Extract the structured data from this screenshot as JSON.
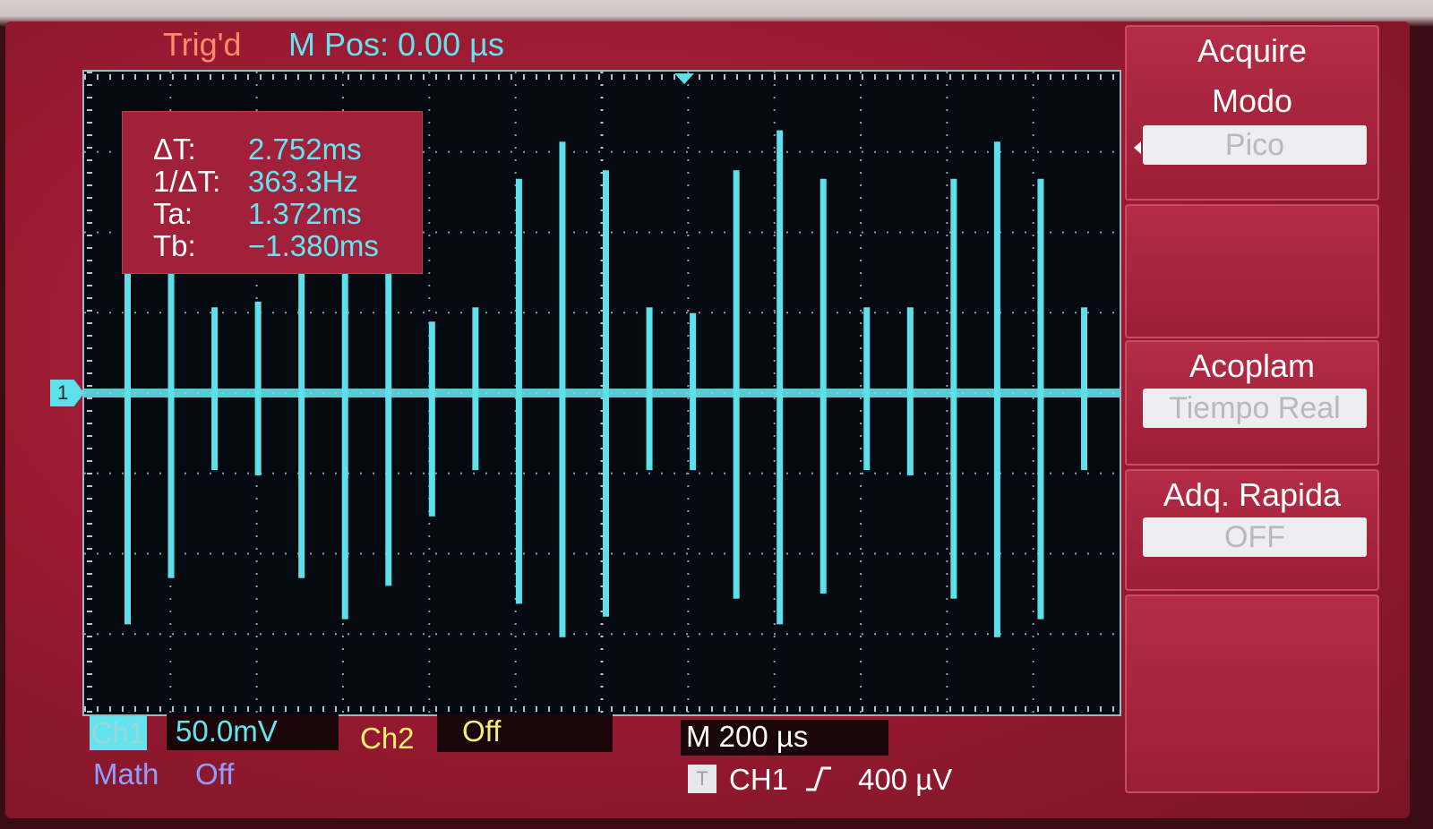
{
  "status": {
    "trigger_state": "Trig'd",
    "main_position": "M Pos: 0.00 µs"
  },
  "measurements": [
    {
      "label": "ΔT:",
      "value": "2.752ms"
    },
    {
      "label": "1/ΔT:",
      "value": "363.3Hz"
    },
    {
      "label": "Ta:",
      "value": "1.372ms"
    },
    {
      "label": "Tb:",
      "value": "−1.380ms"
    }
  ],
  "channel_marker": "1",
  "menu": {
    "title": "Acquire",
    "modo_label": "Modo",
    "modo_value": "Pico",
    "acoplam_label": "Acoplam",
    "acoplam_value": "Tiempo Real",
    "adq_label": "Adq. Rapida",
    "adq_value": "OFF"
  },
  "bottom": {
    "ch1_label": "Ch1",
    "ch1_scale": "50.0mV",
    "ch2_label": "Ch2",
    "ch2_value": "Off",
    "math_label": "Math",
    "math_value": "Off",
    "timebase": "M 200 µs",
    "trigger_icon": "T",
    "trigger_source": "CH1",
    "trigger_edge_icon": "rising-edge-icon",
    "trigger_level": "400 µV"
  },
  "colors": {
    "trace": "#5ee0ea",
    "screen_bg": "#050a10",
    "panel": "#a1213a",
    "ch2": "#f5f070",
    "math": "#8ea0ff"
  },
  "waveform": {
    "description": "impulse train",
    "spikes": [
      {
        "up": 0.85,
        "down": 0.9
      },
      {
        "up": 0.7,
        "down": 0.72
      },
      {
        "up": 0.3,
        "down": 0.3
      },
      {
        "up": 0.32,
        "down": 0.32
      },
      {
        "up": 0.75,
        "down": 0.72
      },
      {
        "up": 0.75,
        "down": 0.88
      },
      {
        "up": 0.72,
        "down": 0.75
      },
      {
        "up": 0.25,
        "down": 0.48
      },
      {
        "up": 0.3,
        "down": 0.3
      },
      {
        "up": 0.75,
        "down": 0.82
      },
      {
        "up": 0.88,
        "down": 0.95
      },
      {
        "up": 0.78,
        "down": 0.87
      },
      {
        "up": 0.3,
        "down": 0.3
      },
      {
        "up": 0.28,
        "down": 0.3
      },
      {
        "up": 0.78,
        "down": 0.8
      },
      {
        "up": 0.92,
        "down": 0.9
      },
      {
        "up": 0.75,
        "down": 0.78
      },
      {
        "up": 0.3,
        "down": 0.3
      },
      {
        "up": 0.3,
        "down": 0.32
      },
      {
        "up": 0.75,
        "down": 0.8
      },
      {
        "up": 0.88,
        "down": 0.95
      },
      {
        "up": 0.75,
        "down": 0.88
      },
      {
        "up": 0.3,
        "down": 0.3
      }
    ]
  }
}
